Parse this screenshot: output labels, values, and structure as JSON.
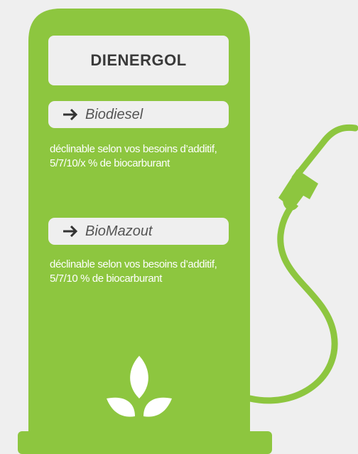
{
  "title": "DIENERGOL",
  "items": [
    {
      "label": "Biodiesel",
      "description": "déclinable selon vos besoins d’additif, 5/7/10/x % de biocarburant"
    },
    {
      "label": "BioMazout",
      "description": "déclinable selon vos besoins d’additif, 5/7/10 % de biocarburant"
    }
  ]
}
